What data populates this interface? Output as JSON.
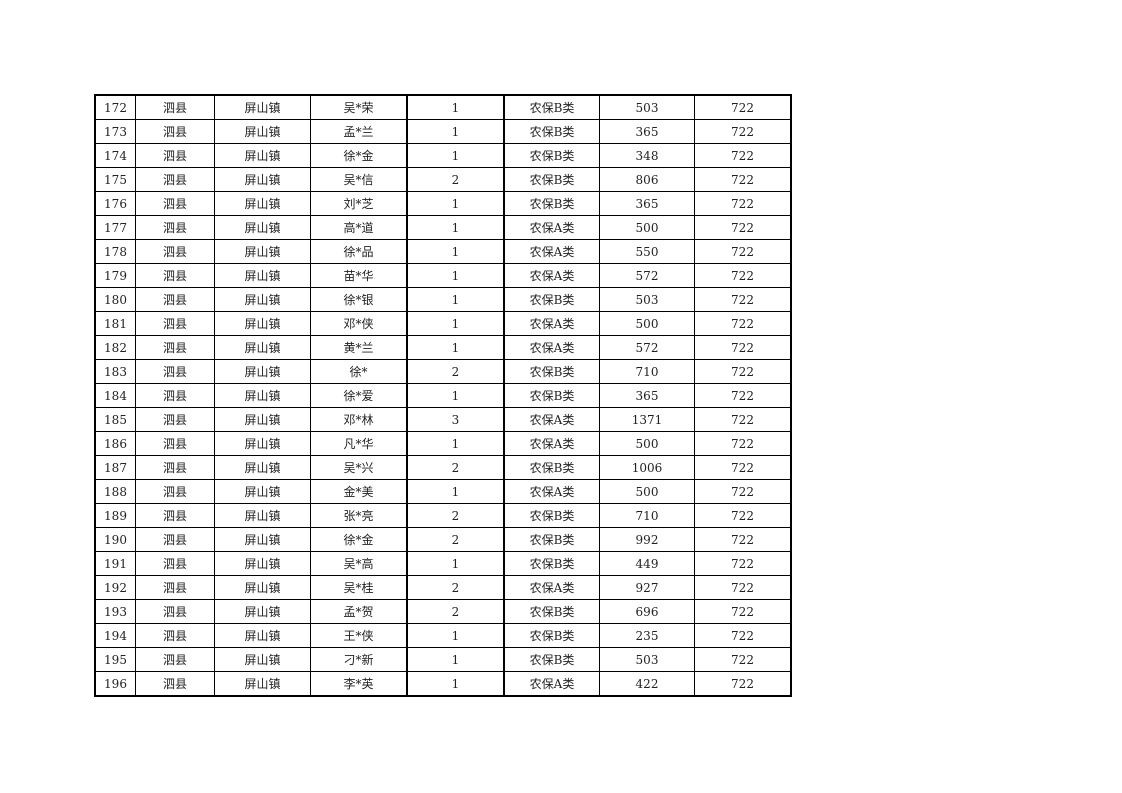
{
  "table": {
    "rows": [
      [
        "172",
        "泗县",
        "屏山镇",
        "吴*荣",
        "1",
        "农保B类",
        "503",
        "722"
      ],
      [
        "173",
        "泗县",
        "屏山镇",
        "孟*兰",
        "1",
        "农保B类",
        "365",
        "722"
      ],
      [
        "174",
        "泗县",
        "屏山镇",
        "徐*金",
        "1",
        "农保B类",
        "348",
        "722"
      ],
      [
        "175",
        "泗县",
        "屏山镇",
        "吴*信",
        "2",
        "农保B类",
        "806",
        "722"
      ],
      [
        "176",
        "泗县",
        "屏山镇",
        "刘*芝",
        "1",
        "农保B类",
        "365",
        "722"
      ],
      [
        "177",
        "泗县",
        "屏山镇",
        "高*道",
        "1",
        "农保A类",
        "500",
        "722"
      ],
      [
        "178",
        "泗县",
        "屏山镇",
        "徐*品",
        "1",
        "农保A类",
        "550",
        "722"
      ],
      [
        "179",
        "泗县",
        "屏山镇",
        "苗*华",
        "1",
        "农保A类",
        "572",
        "722"
      ],
      [
        "180",
        "泗县",
        "屏山镇",
        "徐*银",
        "1",
        "农保B类",
        "503",
        "722"
      ],
      [
        "181",
        "泗县",
        "屏山镇",
        "邓*侠",
        "1",
        "农保A类",
        "500",
        "722"
      ],
      [
        "182",
        "泗县",
        "屏山镇",
        "黄*兰",
        "1",
        "农保A类",
        "572",
        "722"
      ],
      [
        "183",
        "泗县",
        "屏山镇",
        "徐*",
        "2",
        "农保B类",
        "710",
        "722"
      ],
      [
        "184",
        "泗县",
        "屏山镇",
        "徐*爱",
        "1",
        "农保B类",
        "365",
        "722"
      ],
      [
        "185",
        "泗县",
        "屏山镇",
        "邓*林",
        "3",
        "农保A类",
        "1371",
        "722"
      ],
      [
        "186",
        "泗县",
        "屏山镇",
        "凡*华",
        "1",
        "农保A类",
        "500",
        "722"
      ],
      [
        "187",
        "泗县",
        "屏山镇",
        "吴*兴",
        "2",
        "农保B类",
        "1006",
        "722"
      ],
      [
        "188",
        "泗县",
        "屏山镇",
        "金*美",
        "1",
        "农保A类",
        "500",
        "722"
      ],
      [
        "189",
        "泗县",
        "屏山镇",
        "张*亮",
        "2",
        "农保B类",
        "710",
        "722"
      ],
      [
        "190",
        "泗县",
        "屏山镇",
        "徐*金",
        "2",
        "农保B类",
        "992",
        "722"
      ],
      [
        "191",
        "泗县",
        "屏山镇",
        "吴*高",
        "1",
        "农保B类",
        "449",
        "722"
      ],
      [
        "192",
        "泗县",
        "屏山镇",
        "吴*桂",
        "2",
        "农保A类",
        "927",
        "722"
      ],
      [
        "193",
        "泗县",
        "屏山镇",
        "孟*贺",
        "2",
        "农保B类",
        "696",
        "722"
      ],
      [
        "194",
        "泗县",
        "屏山镇",
        "王*侠",
        "1",
        "农保B类",
        "235",
        "722"
      ],
      [
        "195",
        "泗县",
        "屏山镇",
        "刁*新",
        "1",
        "农保B类",
        "503",
        "722"
      ],
      [
        "196",
        "泗县",
        "屏山镇",
        "李*英",
        "1",
        "农保A类",
        "422",
        "722"
      ]
    ]
  }
}
